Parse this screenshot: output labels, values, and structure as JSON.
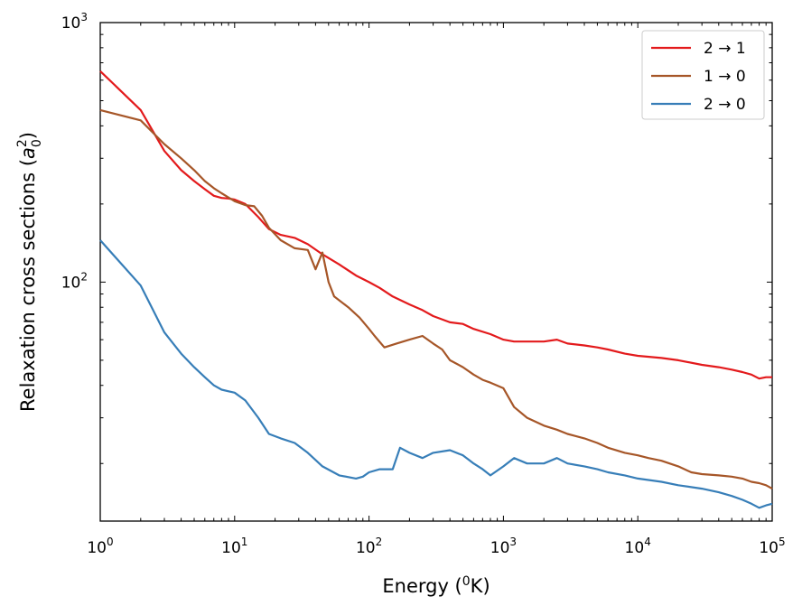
{
  "chart_data": {
    "type": "line",
    "xscale": "log",
    "yscale": "log",
    "xlim": [
      1,
      100000
    ],
    "ylim": [
      12,
      1000
    ],
    "xlabel": {
      "base": "Energy (",
      "sup": "0",
      "tail": "K)"
    },
    "ylabel": {
      "base": "Relaxation cross sections (",
      "var": "a",
      "sup": "2",
      "sub": "0",
      "tail": ")"
    },
    "x_ticks": [
      {
        "value": 1,
        "base": "10",
        "exp": "0"
      },
      {
        "value": 10,
        "base": "10",
        "exp": "1"
      },
      {
        "value": 100,
        "base": "10",
        "exp": "2"
      },
      {
        "value": 1000,
        "base": "10",
        "exp": "3"
      },
      {
        "value": 10000,
        "base": "10",
        "exp": "4"
      },
      {
        "value": 100000,
        "base": "10",
        "exp": "5"
      }
    ],
    "y_ticks": [
      {
        "value": 100,
        "base": "10",
        "exp": "2"
      },
      {
        "value": 1000,
        "base": "10",
        "exp": "3"
      }
    ],
    "legend_position": "top-right",
    "grid": false,
    "series": [
      {
        "name": "2 → 1",
        "color": "#e31a1c",
        "points": [
          [
            1,
            650
          ],
          [
            2,
            460
          ],
          [
            3,
            320
          ],
          [
            4,
            270
          ],
          [
            5,
            245
          ],
          [
            6,
            228
          ],
          [
            7,
            215
          ],
          [
            8,
            211
          ],
          [
            9,
            210
          ],
          [
            10,
            208
          ],
          [
            12,
            200
          ],
          [
            15,
            178
          ],
          [
            18,
            160
          ],
          [
            22,
            152
          ],
          [
            28,
            148
          ],
          [
            35,
            140
          ],
          [
            45,
            128
          ],
          [
            60,
            117
          ],
          [
            80,
            106
          ],
          [
            100,
            100
          ],
          [
            120,
            95
          ],
          [
            150,
            88
          ],
          [
            200,
            82
          ],
          [
            250,
            78
          ],
          [
            300,
            74
          ],
          [
            400,
            70
          ],
          [
            500,
            69
          ],
          [
            600,
            66
          ],
          [
            800,
            63
          ],
          [
            1000,
            60
          ],
          [
            1200,
            59
          ],
          [
            1500,
            59
          ],
          [
            2000,
            59
          ],
          [
            2500,
            60
          ],
          [
            3000,
            58
          ],
          [
            4000,
            57
          ],
          [
            5000,
            56
          ],
          [
            6000,
            55
          ],
          [
            8000,
            53
          ],
          [
            10000,
            52
          ],
          [
            15000,
            51
          ],
          [
            20000,
            50
          ],
          [
            30000,
            48
          ],
          [
            40000,
            47
          ],
          [
            50000,
            46
          ],
          [
            60000,
            45
          ],
          [
            70000,
            44
          ],
          [
            80000,
            42.5
          ],
          [
            90000,
            43
          ],
          [
            100000,
            43
          ]
        ]
      },
      {
        "name": "1 → 0",
        "color": "#a65628",
        "points": [
          [
            1,
            460
          ],
          [
            2,
            420
          ],
          [
            3,
            340
          ],
          [
            4,
            300
          ],
          [
            5,
            270
          ],
          [
            6,
            245
          ],
          [
            7,
            230
          ],
          [
            8,
            220
          ],
          [
            10,
            205
          ],
          [
            12,
            198
          ],
          [
            14,
            196
          ],
          [
            16,
            180
          ],
          [
            18,
            162
          ],
          [
            22,
            145
          ],
          [
            28,
            135
          ],
          [
            35,
            133
          ],
          [
            40,
            112
          ],
          [
            45,
            130
          ],
          [
            50,
            100
          ],
          [
            55,
            88
          ],
          [
            70,
            80
          ],
          [
            85,
            73
          ],
          [
            100,
            66
          ],
          [
            110,
            62
          ],
          [
            130,
            56
          ],
          [
            160,
            58
          ],
          [
            200,
            60
          ],
          [
            250,
            62
          ],
          [
            300,
            58
          ],
          [
            350,
            55
          ],
          [
            400,
            50
          ],
          [
            500,
            47
          ],
          [
            600,
            44
          ],
          [
            700,
            42
          ],
          [
            800,
            41
          ],
          [
            1000,
            39
          ],
          [
            1200,
            33
          ],
          [
            1500,
            30
          ],
          [
            2000,
            28
          ],
          [
            2500,
            27
          ],
          [
            3000,
            26
          ],
          [
            4000,
            25
          ],
          [
            5000,
            24
          ],
          [
            6000,
            23
          ],
          [
            8000,
            22
          ],
          [
            10000,
            21.5
          ],
          [
            12000,
            21
          ],
          [
            15000,
            20.5
          ],
          [
            20000,
            19.5
          ],
          [
            25000,
            18.5
          ],
          [
            30000,
            18.2
          ],
          [
            40000,
            18
          ],
          [
            50000,
            17.8
          ],
          [
            60000,
            17.5
          ],
          [
            70000,
            17
          ],
          [
            80000,
            16.8
          ],
          [
            90000,
            16.5
          ],
          [
            100000,
            16
          ]
        ]
      },
      {
        "name": "2 → 0",
        "color": "#377eb8",
        "points": [
          [
            1,
            145
          ],
          [
            2,
            97
          ],
          [
            3,
            64
          ],
          [
            4,
            53
          ],
          [
            5,
            47
          ],
          [
            6,
            43
          ],
          [
            7,
            40
          ],
          [
            8,
            38.5
          ],
          [
            10,
            37.5
          ],
          [
            12,
            35
          ],
          [
            15,
            30
          ],
          [
            18,
            26
          ],
          [
            22,
            25
          ],
          [
            28,
            24
          ],
          [
            35,
            22
          ],
          [
            45,
            19.5
          ],
          [
            60,
            18
          ],
          [
            80,
            17.5
          ],
          [
            90,
            17.8
          ],
          [
            100,
            18.5
          ],
          [
            120,
            19
          ],
          [
            150,
            19
          ],
          [
            170,
            23
          ],
          [
            200,
            22
          ],
          [
            250,
            21
          ],
          [
            300,
            22
          ],
          [
            400,
            22.5
          ],
          [
            500,
            21.5
          ],
          [
            600,
            20
          ],
          [
            700,
            19
          ],
          [
            800,
            18
          ],
          [
            1000,
            19.5
          ],
          [
            1200,
            21
          ],
          [
            1500,
            20
          ],
          [
            2000,
            20
          ],
          [
            2500,
            21
          ],
          [
            3000,
            20
          ],
          [
            4000,
            19.5
          ],
          [
            5000,
            19
          ],
          [
            6000,
            18.5
          ],
          [
            8000,
            18
          ],
          [
            10000,
            17.5
          ],
          [
            15000,
            17
          ],
          [
            20000,
            16.5
          ],
          [
            30000,
            16
          ],
          [
            40000,
            15.5
          ],
          [
            50000,
            15
          ],
          [
            60000,
            14.5
          ],
          [
            70000,
            14
          ],
          [
            80000,
            13.5
          ],
          [
            90000,
            13.8
          ],
          [
            100000,
            14
          ]
        ]
      }
    ]
  }
}
